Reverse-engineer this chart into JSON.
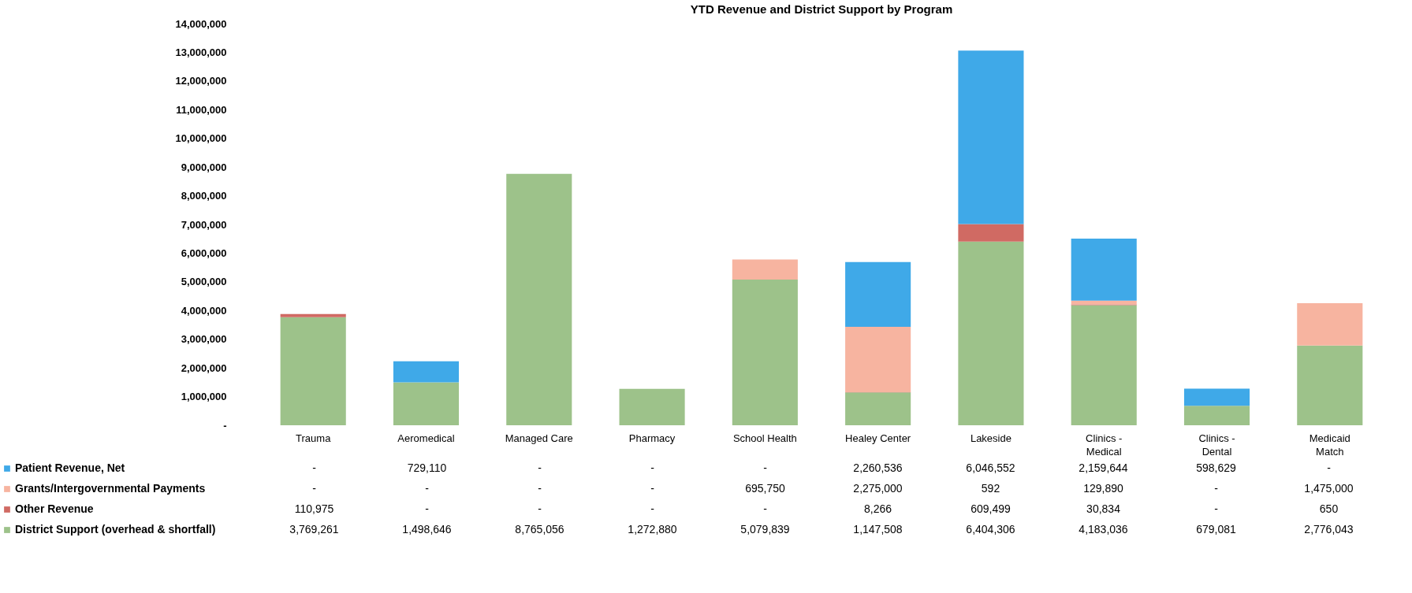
{
  "chart_data": {
    "type": "bar",
    "title": "YTD Revenue and District Support by Program",
    "stacked": true,
    "legend": "bottom left",
    "grid": false,
    "categories": [
      "Trauma",
      "Aeromedical",
      "Managed Care",
      "Pharmacy",
      "School Health",
      "Healey Center",
      "Lakeside",
      "Clinics - Medical",
      "Clinics - Dental",
      "Medicaid Match"
    ],
    "ylim": [
      0,
      14000000
    ],
    "yticks": [
      {
        "value": 0,
        "label": "-"
      },
      {
        "value": 1000000,
        "label": "1,000,000"
      },
      {
        "value": 2000000,
        "label": "2,000,000"
      },
      {
        "value": 3000000,
        "label": "3,000,000"
      },
      {
        "value": 4000000,
        "label": "4,000,000"
      },
      {
        "value": 5000000,
        "label": "5,000,000"
      },
      {
        "value": 6000000,
        "label": "6,000,000"
      },
      {
        "value": 7000000,
        "label": "7,000,000"
      },
      {
        "value": 8000000,
        "label": "8,000,000"
      },
      {
        "value": 9000000,
        "label": "9,000,000"
      },
      {
        "value": 10000000,
        "label": "10,000,000"
      },
      {
        "value": 11000000,
        "label": "11,000,000"
      },
      {
        "value": 12000000,
        "label": "12,000,000"
      },
      {
        "value": 13000000,
        "label": "13,000,000"
      },
      {
        "value": 14000000,
        "label": "14,000,000"
      }
    ],
    "series": [
      {
        "name": "District Support (overhead & shortfall)",
        "color": "#9dc28a",
        "values": [
          3769261,
          1498646,
          8765056,
          1272880,
          5079839,
          1147508,
          6404306,
          4183036,
          679081,
          2776043
        ],
        "value_labels": [
          "3,769,261",
          "1,498,646",
          "8,765,056",
          "1,272,880",
          "5,079,839",
          "1,147,508",
          "6,404,306",
          "4,183,036",
          "679,081",
          "2,776,043"
        ]
      },
      {
        "name": "Other Revenue",
        "color": "#d06a63",
        "values": [
          110975,
          null,
          null,
          null,
          null,
          8266,
          609499,
          30834,
          null,
          650
        ],
        "value_labels": [
          "110,975",
          "-",
          "-",
          "-",
          "-",
          "8,266",
          "609,499",
          "30,834",
          "-",
          "650"
        ]
      },
      {
        "name": "Grants/Intergovernmental Payments",
        "color": "#f7b4a0",
        "values": [
          null,
          null,
          null,
          null,
          695750,
          2275000,
          592,
          129890,
          null,
          1475000
        ],
        "value_labels": [
          "-",
          "-",
          "-",
          "-",
          "695,750",
          "2,275,000",
          "592",
          "129,890",
          "-",
          "1,475,000"
        ]
      },
      {
        "name": "Patient Revenue, Net",
        "color": "#3fa9e8",
        "values": [
          null,
          729110,
          null,
          null,
          null,
          2260536,
          6046552,
          2159644,
          598629,
          null
        ],
        "value_labels": [
          "-",
          "729,110",
          "-",
          "-",
          "-",
          "2,260,536",
          "6,046,552",
          "2,159,644",
          "598,629",
          "-"
        ]
      }
    ]
  }
}
